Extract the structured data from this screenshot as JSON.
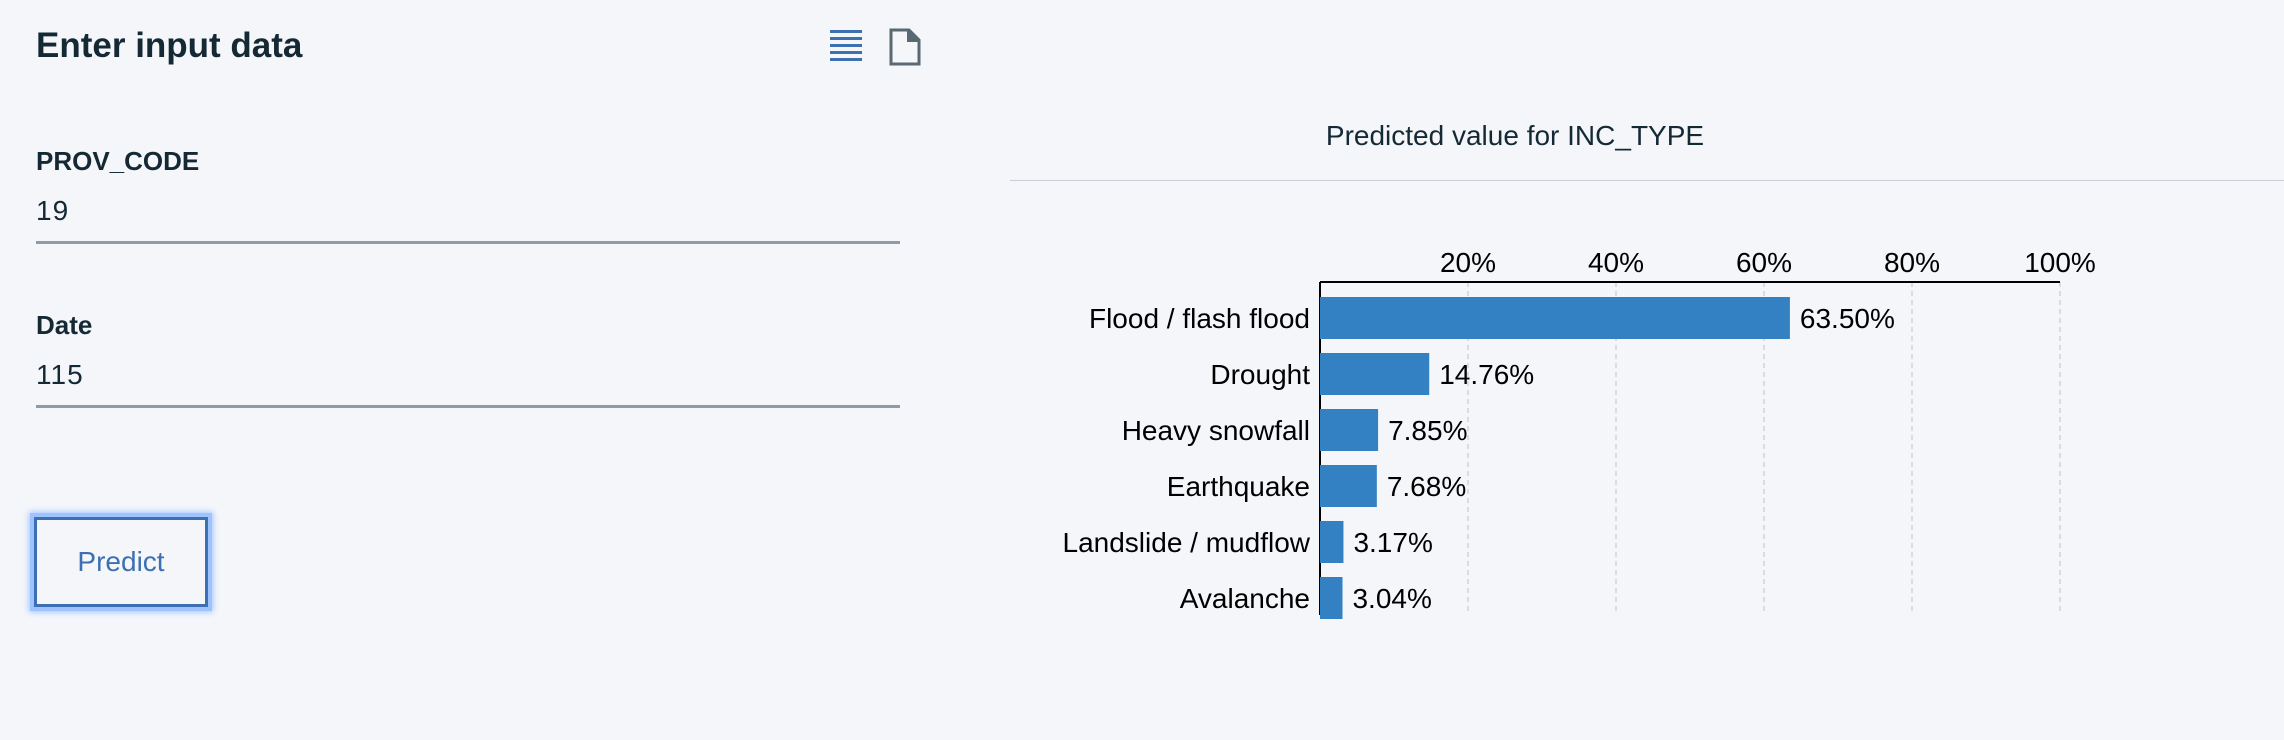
{
  "panel": {
    "title": "Enter input data",
    "icons": [
      "list-view-icon",
      "document-icon"
    ]
  },
  "fields": [
    {
      "label": "PROV_CODE",
      "value": "19"
    },
    {
      "label": "Date",
      "value": "115"
    }
  ],
  "predict_button": {
    "label": "Predict"
  },
  "chart_data": {
    "type": "bar",
    "orientation": "horizontal",
    "title": "Predicted value for INC_TYPE",
    "categories": [
      "Flood / flash flood",
      "Drought",
      "Heavy snowfall",
      "Earthquake",
      "Landslide / mudflow",
      "Avalanche"
    ],
    "values": [
      63.5,
      14.76,
      7.85,
      7.68,
      3.17,
      3.04
    ],
    "value_labels": [
      "63.50%",
      "14.76%",
      "7.85%",
      "7.68%",
      "3.17%",
      "3.04%"
    ],
    "xlim": [
      0,
      100
    ],
    "xticks": [
      20,
      40,
      60,
      80,
      100
    ],
    "xtick_labels": [
      "20%",
      "40%",
      "60%",
      "80%",
      "100%"
    ],
    "axis_position": "top",
    "grid": true,
    "bar_color": "#3380c2"
  }
}
